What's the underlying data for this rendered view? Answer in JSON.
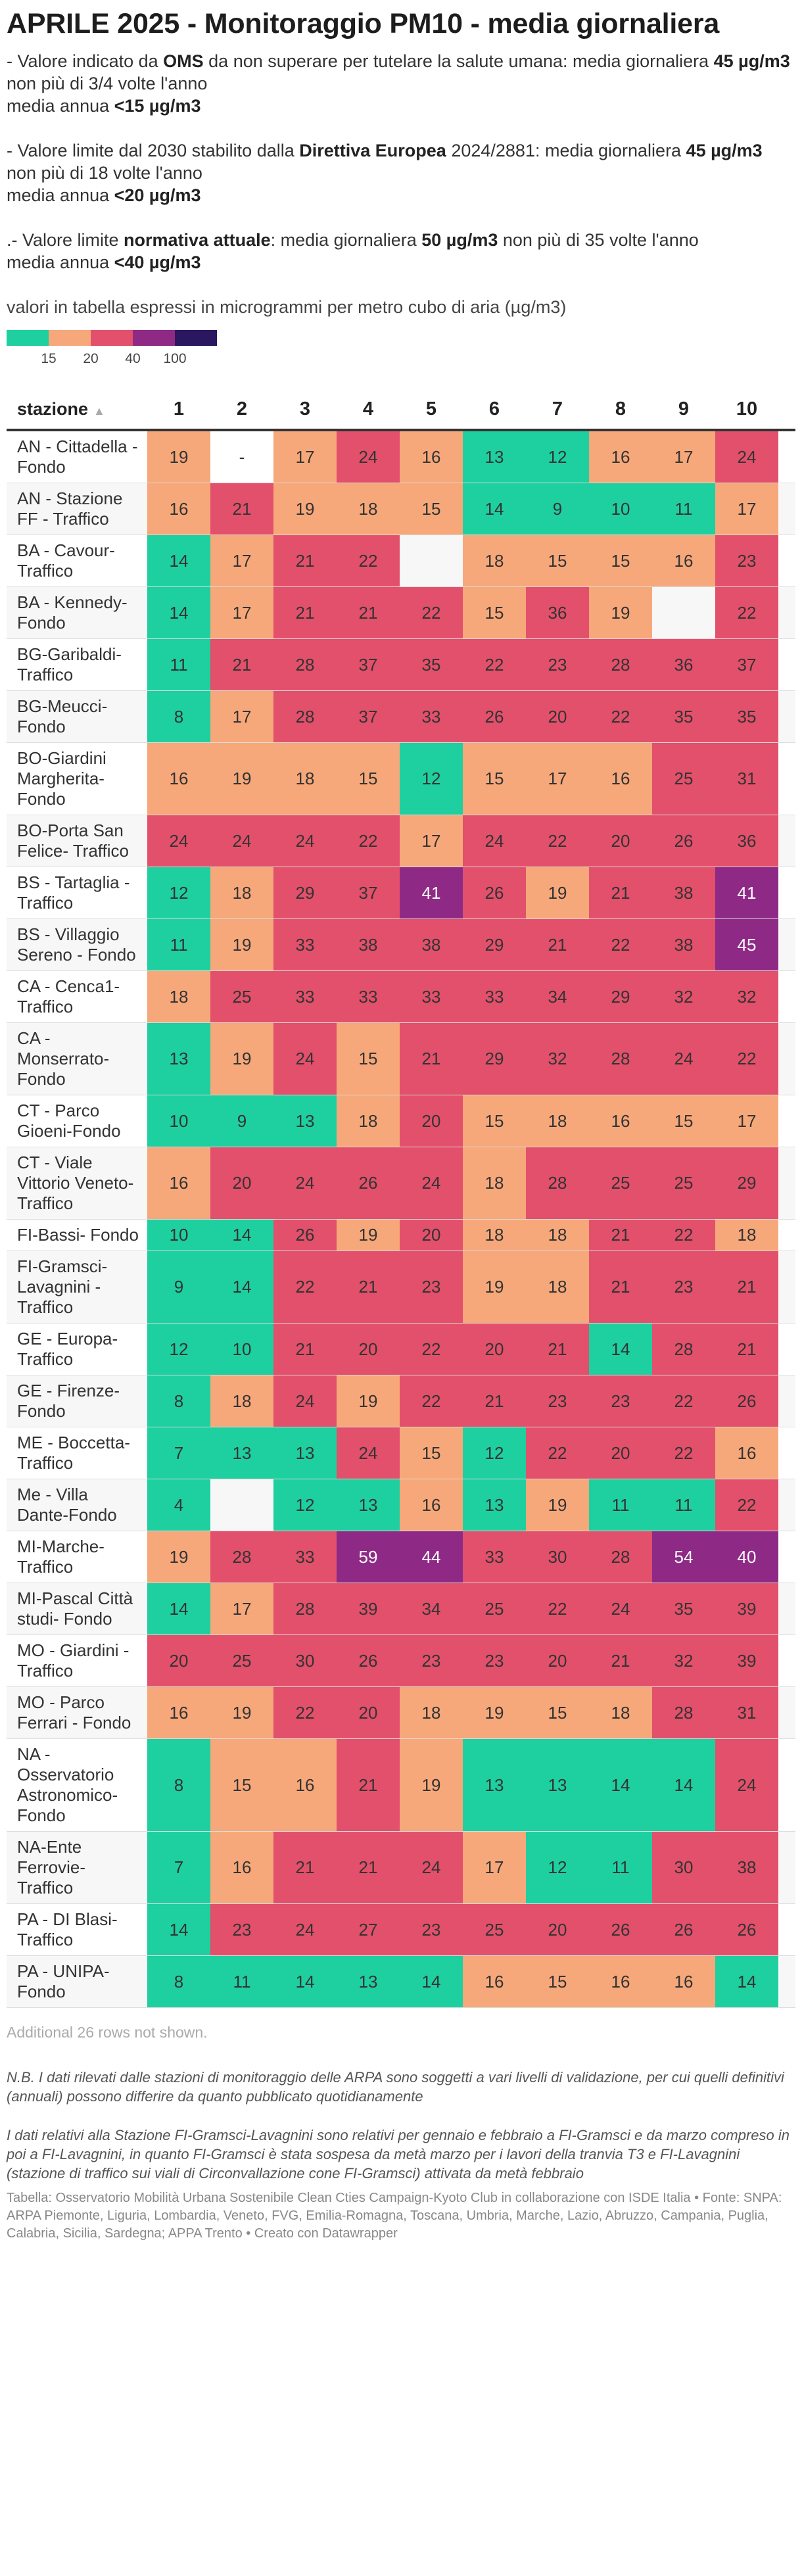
{
  "title": "APRILE 2025 - Monitoraggio PM10 - media giornaliera",
  "notes": {
    "oms": {
      "pre": "- Valore indicato da ",
      "bold1": "OMS",
      "mid": " da non superare per tutelare la salute umana: media giornaliera ",
      "bold2": "45 µg/m3",
      "post": " non più di 3/4 volte l'anno",
      "annual_pre": "media annua ",
      "annual_bold": "<15 µg/m3"
    },
    "direttiva": {
      "pre": "- Valore limite dal 2030 stabilito dalla ",
      "bold1": "Direttiva Europea",
      "mid": " 2024/2881: media giornaliera ",
      "bold2": "45 µg/m3",
      "post": " non più di 18 volte l'anno",
      "annual_pre": "media annua ",
      "annual_bold": "<20 µg/m3"
    },
    "attuale": {
      "pre": ".- Valore limite ",
      "bold1": "normativa attuale",
      "mid": ": media giornaliera ",
      "bold2": "50 µg/m3",
      "post": " non più di 35 volte l'anno",
      "annual_pre": "media annua ",
      "annual_bold": "<40 µg/m3"
    },
    "unit": "valori in tabella espressi in microgrammi per metro cubo di aria (µg/m3)"
  },
  "legend": {
    "colors": [
      "#1ecfa0",
      "#f6a87a",
      "#e2506b",
      "#8e2a86",
      "#2b1660"
    ],
    "labels": [
      "15",
      "20",
      "40",
      "100"
    ]
  },
  "colors": {
    "lt15": "#1ecfa0",
    "lt20": "#f6a87a",
    "lt40": "#e2506b",
    "lt100": "#8e2a86",
    "gte100": "#2b1660",
    "empty": "#f7f7f7",
    "nodata": "#ffffff"
  },
  "chart_data": {
    "type": "table",
    "title": "APRILE 2025 - Monitoraggio PM10 - media giornaliera",
    "header_station": "stazione",
    "days": [
      "1",
      "2",
      "3",
      "4",
      "5",
      "6",
      "7",
      "8",
      "9",
      "10"
    ],
    "rows": [
      {
        "station": "AN - Cittadella - Fondo",
        "values": [
          "19",
          "-",
          "17",
          "24",
          "16",
          "13",
          "12",
          "16",
          "17",
          "24"
        ]
      },
      {
        "station": "AN - Stazione FF - Traffico",
        "values": [
          "16",
          "21",
          "19",
          "18",
          "15",
          "14",
          "9",
          "10",
          "11",
          "17"
        ]
      },
      {
        "station": "BA - Cavour- Traffico",
        "values": [
          "14",
          "17",
          "21",
          "22",
          "",
          "18",
          "15",
          "15",
          "16",
          "23"
        ]
      },
      {
        "station": "BA - Kennedy- Fondo",
        "values": [
          "14",
          "17",
          "21",
          "21",
          "22",
          "15",
          "36",
          "19",
          "",
          "22"
        ]
      },
      {
        "station": "BG-Garibaldi- Traffico",
        "values": [
          "11",
          "21",
          "28",
          "37",
          "35",
          "22",
          "23",
          "28",
          "36",
          "37"
        ]
      },
      {
        "station": "BG-Meucci- Fondo",
        "values": [
          "8",
          "17",
          "28",
          "37",
          "33",
          "26",
          "20",
          "22",
          "35",
          "35"
        ]
      },
      {
        "station": "BO-Giardini Margherita- Fondo",
        "values": [
          "16",
          "19",
          "18",
          "15",
          "12",
          "15",
          "17",
          "16",
          "25",
          "31"
        ]
      },
      {
        "station": "BO-Porta San Felice- Traffico",
        "values": [
          "24",
          "24",
          "24",
          "22",
          "17",
          "24",
          "22",
          "20",
          "26",
          "36"
        ]
      },
      {
        "station": "BS - Tartaglia - Traffico",
        "values": [
          "12",
          "18",
          "29",
          "37",
          "41",
          "26",
          "19",
          "21",
          "38",
          "41"
        ]
      },
      {
        "station": "BS - Villaggio Sereno - Fondo",
        "values": [
          "11",
          "19",
          "33",
          "38",
          "38",
          "29",
          "21",
          "22",
          "38",
          "45"
        ]
      },
      {
        "station": "CA - Cenca1- Traffico",
        "values": [
          "18",
          "25",
          "33",
          "33",
          "33",
          "33",
          "34",
          "29",
          "32",
          "32"
        ]
      },
      {
        "station": "CA - Monserrato- Fondo",
        "values": [
          "13",
          "19",
          "24",
          "15",
          "21",
          "29",
          "32",
          "28",
          "24",
          "22"
        ]
      },
      {
        "station": "CT - Parco Gioeni-Fondo",
        "values": [
          "10",
          "9",
          "13",
          "18",
          "20",
          "15",
          "18",
          "16",
          "15",
          "17"
        ]
      },
      {
        "station": "CT - Viale Vittorio Veneto- Traffico",
        "values": [
          "16",
          "20",
          "24",
          "26",
          "24",
          "18",
          "28",
          "25",
          "25",
          "29"
        ]
      },
      {
        "station": "FI-Bassi- Fondo",
        "values": [
          "10",
          "14",
          "26",
          "19",
          "20",
          "18",
          "18",
          "21",
          "22",
          "18"
        ]
      },
      {
        "station": "FI-Gramsci- Lavagnini - Traffico",
        "values": [
          "9",
          "14",
          "22",
          "21",
          "23",
          "19",
          "18",
          "21",
          "23",
          "21"
        ]
      },
      {
        "station": "GE - Europa- Traffico",
        "values": [
          "12",
          "10",
          "21",
          "20",
          "22",
          "20",
          "21",
          "14",
          "28",
          "21"
        ]
      },
      {
        "station": "GE - Firenze- Fondo",
        "values": [
          "8",
          "18",
          "24",
          "19",
          "22",
          "21",
          "23",
          "23",
          "22",
          "26"
        ]
      },
      {
        "station": "ME - Boccetta- Traffico",
        "values": [
          "7",
          "13",
          "13",
          "24",
          "15",
          "12",
          "22",
          "20",
          "22",
          "16"
        ]
      },
      {
        "station": "Me - Villa Dante-Fondo",
        "values": [
          "4",
          "",
          "12",
          "13",
          "16",
          "13",
          "19",
          "11",
          "11",
          "22"
        ]
      },
      {
        "station": "MI-Marche- Traffico",
        "values": [
          "19",
          "28",
          "33",
          "59",
          "44",
          "33",
          "30",
          "28",
          "54",
          "40"
        ]
      },
      {
        "station": "MI-Pascal Città studi- Fondo",
        "values": [
          "14",
          "17",
          "28",
          "39",
          "34",
          "25",
          "22",
          "24",
          "35",
          "39"
        ]
      },
      {
        "station": "MO - Giardini - Traffico",
        "values": [
          "20",
          "25",
          "30",
          "26",
          "23",
          "23",
          "20",
          "21",
          "32",
          "39"
        ]
      },
      {
        "station": "MO - Parco Ferrari - Fondo",
        "values": [
          "16",
          "19",
          "22",
          "20",
          "18",
          "19",
          "15",
          "18",
          "28",
          "31"
        ]
      },
      {
        "station": "NA - Osservatorio Astronomico- Fondo",
        "values": [
          "8",
          "15",
          "16",
          "21",
          "19",
          "13",
          "13",
          "14",
          "14",
          "24"
        ]
      },
      {
        "station": "NA-Ente Ferrovie- Traffico",
        "values": [
          "7",
          "16",
          "21",
          "21",
          "24",
          "17",
          "12",
          "11",
          "30",
          "38"
        ]
      },
      {
        "station": "PA - DI Blasi- Traffico",
        "values": [
          "14",
          "23",
          "24",
          "27",
          "23",
          "25",
          "20",
          "26",
          "26",
          "26"
        ]
      },
      {
        "station": "PA - UNIPA- Fondo",
        "values": [
          "8",
          "11",
          "14",
          "13",
          "14",
          "16",
          "15",
          "16",
          "16",
          "14"
        ]
      }
    ]
  },
  "footer": {
    "more_rows": "Additional 26 rows not shown.",
    "nb": "N.B. I dati rilevati dalle stazioni di monitoraggio delle ARPA sono soggetti a vari livelli di validazione, per cui quelli definitivi (annuali) possono differire da quanto pubblicato quotidianamente",
    "fi_note": "I dati relativi alla Stazione FI-Gramsci-Lavagnini sono relativi per gennaio e febbraio a FI-Gramsci e da marzo compreso in poi a FI-Lavagnini, in quanto FI-Gramsci è stata sospesa da metà marzo per i lavori della tranvia T3 e FI-Lavagnini (stazione di traffico sui viali di Circonvallazione cone FI-Gramsci) attivata da metà febbraio",
    "source": "Tabella: Osservatorio Mobilità Urbana Sostenibile Clean Cties Campaign-Kyoto Club in collaborazione con ISDE Italia • Fonte: SNPA: ARPA Piemonte, Liguria, Lombardia, Veneto, FVG, Emilia-Romagna, Toscana, Umbria, Marche, Lazio, Abruzzo, Campania, Puglia, Calabria, Sicilia, Sardegna; APPA Trento • Creato con Datawrapper"
  }
}
